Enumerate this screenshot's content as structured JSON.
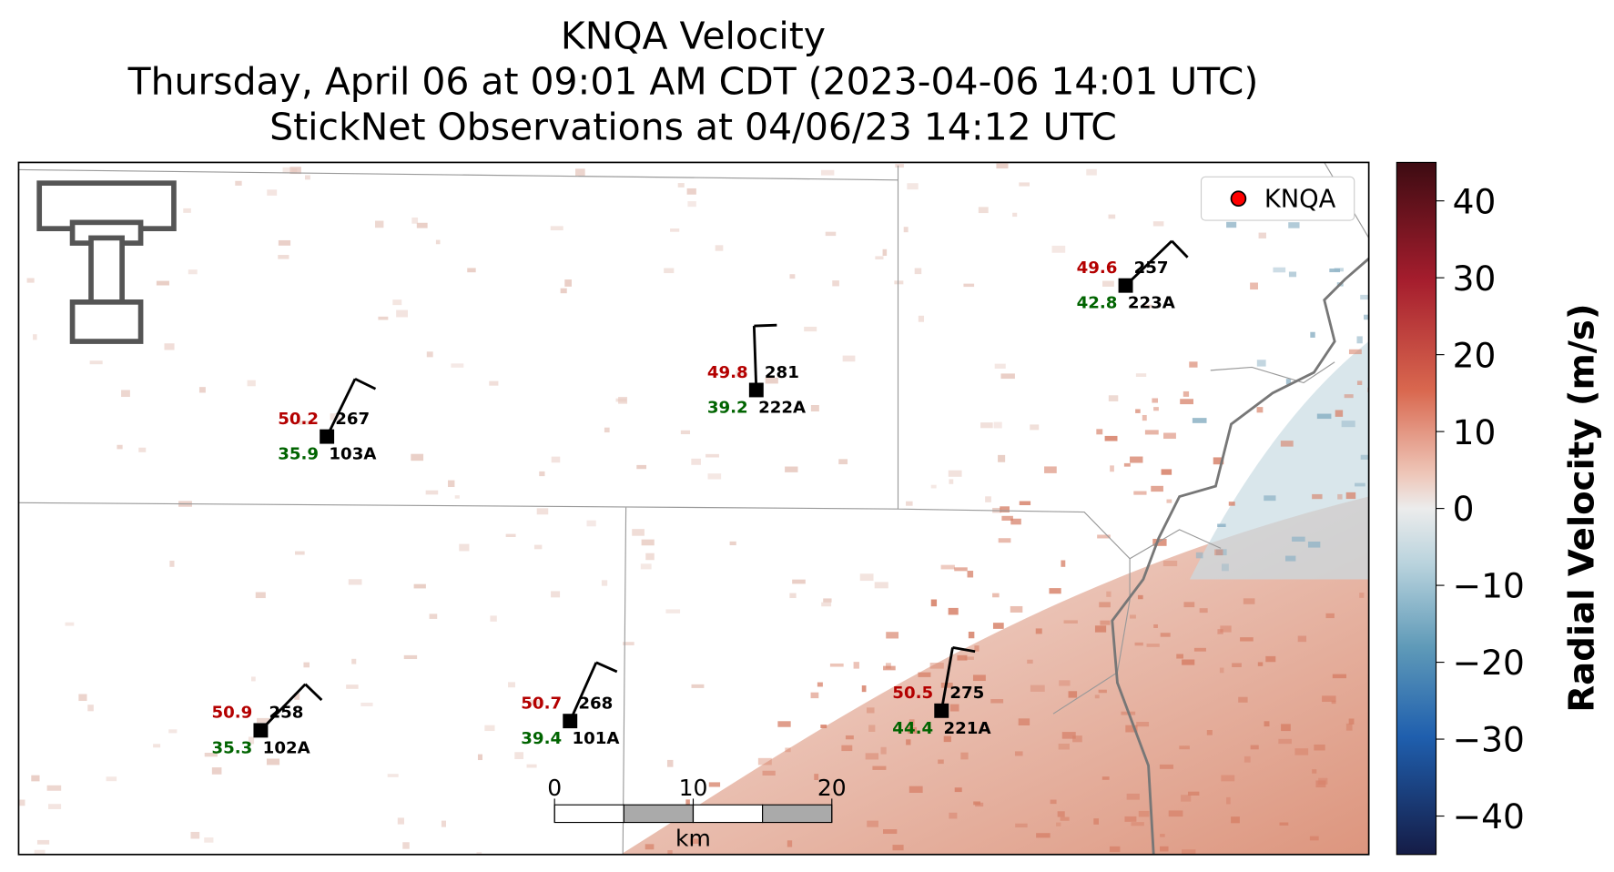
{
  "title": {
    "lines": [
      "KNQA Velocity",
      "Thursday, April 06 at 09:01 AM CDT (2023-04-06 14:01 UTC)",
      "StickNet Observations at 04/06/23 14:12 UTC"
    ]
  },
  "legend": {
    "label": "KNQA",
    "color": "#ff0000"
  },
  "stations": [
    {
      "id": "103A",
      "temperature": 50.2,
      "dewpoint": 35.9,
      "wind_direction": 267
    },
    {
      "id": "222A",
      "temperature": 49.8,
      "dewpoint": 39.2,
      "wind_direction": 281
    },
    {
      "id": "223A",
      "temperature": 49.6,
      "dewpoint": 42.8,
      "wind_direction": 257
    },
    {
      "id": "102A",
      "temperature": 50.9,
      "dewpoint": 35.3,
      "wind_direction": 258
    },
    {
      "id": "101A",
      "temperature": 50.7,
      "dewpoint": 39.4,
      "wind_direction": 268
    },
    {
      "id": "221A",
      "temperature": 50.5,
      "dewpoint": 44.4,
      "wind_direction": 275
    }
  ],
  "scale_bar": {
    "ticks": [
      0,
      10,
      20
    ],
    "unit": "km"
  },
  "colorbar": {
    "label": "Radial Velocity (m/s)",
    "lim": [
      -45,
      45
    ],
    "ticks": [
      40,
      30,
      20,
      10,
      0,
      {
        "value": -10,
        "label": "−10"
      },
      {
        "value": -20,
        "label": "−20"
      },
      {
        "value": -30,
        "label": "−30"
      },
      {
        "value": -40,
        "label": "−40"
      }
    ]
  }
}
